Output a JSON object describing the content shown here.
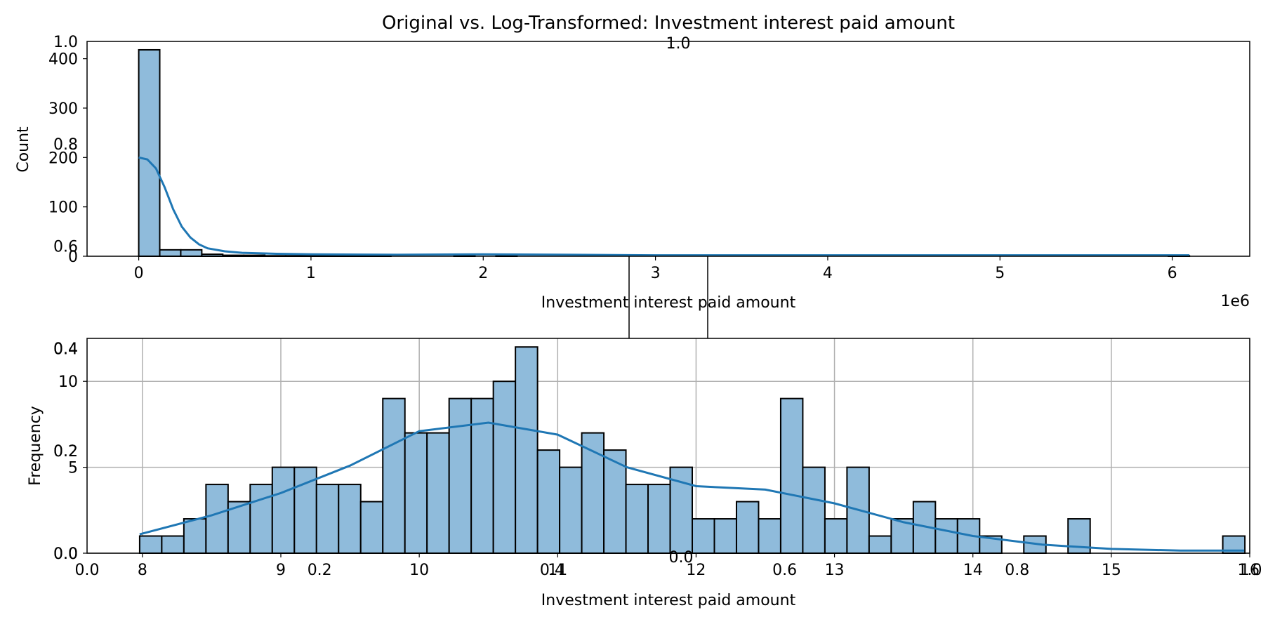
{
  "title": "Original vs. Log-Transformed: Investment interest paid amount",
  "colors": {
    "bar_fill": "#8fbbdb",
    "bar_edge": "#000000",
    "kde": "#1f77b4",
    "grid": "#b0b0b0",
    "frame": "#000000"
  },
  "chart_data": [
    {
      "type": "bar",
      "subtype": "histogram-with-kde",
      "xlabel": "Investment interest paid amount",
      "ylabel": "Count",
      "x_offset_text": "1e6",
      "xlim": [
        -300000,
        6450000
      ],
      "ylim": [
        0,
        435
      ],
      "xticks": [
        0,
        1,
        2,
        3,
        4,
        5,
        6
      ],
      "yticks": [
        0,
        100,
        200,
        300,
        400
      ],
      "grid": false,
      "bin_width": 122000,
      "bin_start": 0,
      "counts": [
        418,
        13,
        13,
        4,
        2,
        2,
        1,
        1,
        1,
        1,
        1,
        1,
        0,
        0,
        0,
        1,
        0,
        1,
        0,
        0,
        0,
        0,
        0,
        0,
        0,
        0,
        0,
        0,
        0,
        0,
        0,
        0,
        0,
        0,
        0,
        0,
        0,
        0,
        0,
        0,
        0,
        0,
        0,
        0,
        0,
        0,
        0,
        0,
        0,
        1
      ],
      "kde": {
        "x": [
          0,
          50000,
          100000,
          150000,
          200000,
          250000,
          300000,
          350000,
          400000,
          500000,
          600000,
          800000,
          1000000,
          1500000,
          2000000,
          2500000,
          3000000,
          4000000,
          5000000,
          6100000
        ],
        "y": [
          200,
          196,
          178,
          140,
          95,
          60,
          38,
          24,
          16,
          10,
          7,
          5,
          4,
          3,
          4,
          3,
          2,
          2,
          2,
          2
        ]
      }
    },
    {
      "type": "bar",
      "subtype": "histogram-with-kde",
      "xlabel": "Investment interest paid amount",
      "ylabel": "Frequency",
      "xlim": [
        7.6,
        16.0
      ],
      "ylim": [
        0,
        12.5
      ],
      "xticks": [
        8,
        9,
        10,
        11,
        12,
        13,
        14,
        15,
        16
      ],
      "yticks": [
        0,
        5,
        10
      ],
      "grid": true,
      "bin_start": 7.98,
      "bin_width": 0.1597,
      "counts": [
        1,
        1,
        2,
        4,
        3,
        4,
        5,
        5,
        4,
        4,
        3,
        9,
        7,
        7,
        9,
        9,
        10,
        12,
        6,
        5,
        7,
        6,
        4,
        4,
        5,
        2,
        2,
        3,
        2,
        9,
        5,
        2,
        5,
        1,
        2,
        3,
        2,
        2,
        1,
        0,
        1,
        0,
        2,
        0,
        0,
        0,
        0,
        0,
        0,
        1
      ],
      "kde": {
        "x": [
          7.98,
          8.5,
          9.0,
          9.5,
          10.0,
          10.5,
          11.0,
          11.5,
          12.0,
          12.5,
          13.0,
          13.5,
          14.0,
          14.5,
          15.0,
          15.5,
          15.96
        ],
        "y": [
          1.1,
          2.2,
          3.5,
          5.1,
          7.1,
          7.6,
          6.9,
          5.0,
          3.9,
          3.7,
          2.9,
          1.8,
          1.0,
          0.5,
          0.25,
          0.15,
          0.15
        ]
      }
    }
  ],
  "ghost_axes": {
    "left_ticks": [
      "0.0",
      "0.2",
      "0.4",
      "0.6",
      "0.8",
      "1.0"
    ],
    "bottom_ticks": [
      "0.0",
      "0.2",
      "0.4",
      "0.6",
      "0.8",
      "1.0"
    ],
    "top_mid_label": "1.0",
    "middle_ticks": [
      "0.0",
      "0.2",
      "0.4",
      "0.6",
      "0.8",
      "1.0"
    ],
    "middle_y_ticks": [
      "0.0",
      "0.2",
      "0.4"
    ]
  }
}
